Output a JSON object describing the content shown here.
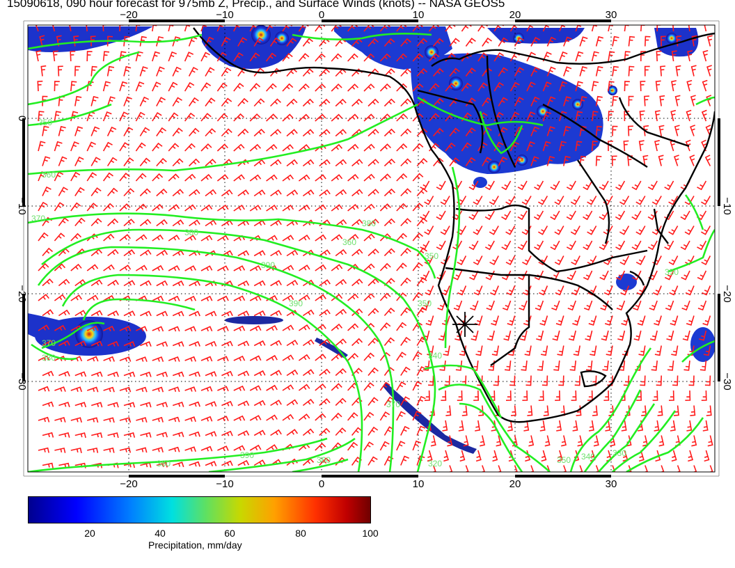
{
  "title": "15090618, 090 hour forecast for 975mb Z, Precip., and Surface Winds (knots) -- NASA GEOS5",
  "map": {
    "lon_ticks_bottom": [
      "−20",
      "−10",
      "0",
      "10",
      "20",
      "30"
    ],
    "lon_ticks_top": [
      "−20",
      "−10",
      "0",
      "10",
      "20",
      "30"
    ],
    "lat_ticks_left": [
      "0",
      "−10",
      "−20",
      "−30"
    ],
    "lat_ticks_right": [
      "−10",
      "−20",
      "−30"
    ],
    "lon_range": [
      -30,
      40
    ],
    "lat_range": [
      -40,
      10
    ],
    "contour_labels": [
      "350",
      "360",
      "370",
      "380",
      "390",
      "390",
      "380",
      "360",
      "350",
      "350",
      "340",
      "370",
      "380",
      "390",
      "380",
      "370",
      "360",
      "350",
      "340",
      "350",
      "330",
      "320"
    ],
    "colors": {
      "contour": "#22ee22",
      "barbs": "#ff1a1a",
      "coast": "#000000",
      "precip_low": "#0000a0",
      "precip_high": "#a00000"
    },
    "marker_icon": "star-marker"
  },
  "colorbar": {
    "ticks": [
      "20",
      "40",
      "60",
      "80",
      "100"
    ],
    "label": "Precipitation, mm/day",
    "range": [
      0,
      100
    ]
  }
}
